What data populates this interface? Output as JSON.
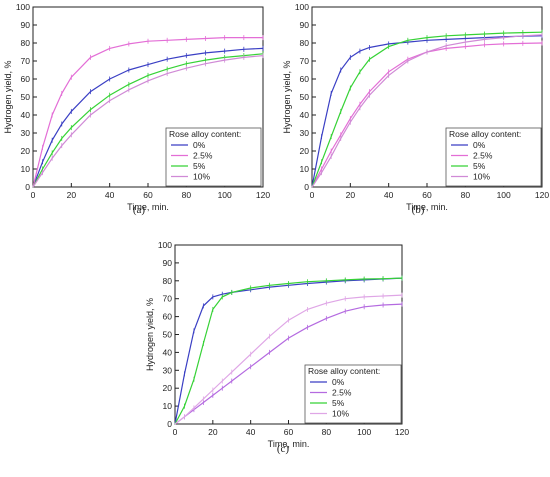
{
  "chart_data": [
    {
      "type": "line",
      "panel_label": "(a)",
      "xlabel": "Time, min.",
      "ylabel": "Hydrogen yield, %",
      "xlim": [
        0,
        120
      ],
      "ylim": [
        0,
        100
      ],
      "xticks": [
        0,
        20,
        40,
        60,
        80,
        100,
        120
      ],
      "yticks": [
        0,
        10,
        20,
        30,
        40,
        50,
        60,
        70,
        80,
        90,
        100
      ],
      "grid": false,
      "legend": {
        "title": "Rose alloy content:",
        "placement": "bottom-right"
      },
      "x": [
        0,
        5,
        10,
        15,
        20,
        30,
        40,
        50,
        60,
        70,
        80,
        90,
        100,
        110,
        120
      ],
      "series": [
        {
          "name": "0%",
          "color": "#3a3fc4",
          "values": [
            0,
            14,
            26,
            35,
            42,
            53,
            60,
            65,
            68,
            71,
            73,
            74.5,
            75.5,
            76.5,
            77
          ]
        },
        {
          "name": "2.5%",
          "color": "#e36ed6",
          "values": [
            0,
            22,
            40,
            52,
            61,
            72,
            77,
            79.5,
            81,
            81.5,
            82,
            82.5,
            83,
            83,
            83
          ]
        },
        {
          "name": "5%",
          "color": "#36d236",
          "values": [
            0,
            10,
            19,
            27,
            33,
            43,
            51,
            57,
            62,
            65.5,
            68.5,
            70.5,
            72,
            73,
            74
          ]
        },
        {
          "name": "10%",
          "color": "#d08ad6",
          "values": [
            0,
            8,
            16,
            23,
            29,
            40,
            48,
            54,
            59,
            63,
            66,
            68.5,
            70.5,
            72,
            73
          ]
        }
      ]
    },
    {
      "type": "line",
      "panel_label": "(b)",
      "xlabel": "Time, min.",
      "ylabel": "Hydrogen yield, %",
      "xlim": [
        0,
        120
      ],
      "ylim": [
        0,
        100
      ],
      "xticks": [
        0,
        20,
        40,
        60,
        80,
        100,
        120
      ],
      "yticks": [
        0,
        10,
        20,
        30,
        40,
        50,
        60,
        70,
        80,
        90,
        100
      ],
      "grid": false,
      "legend": {
        "title": "Rose alloy content:",
        "placement": "bottom-right"
      },
      "x": [
        0,
        5,
        10,
        15,
        20,
        25,
        30,
        40,
        50,
        60,
        70,
        80,
        90,
        100,
        110,
        120
      ],
      "series": [
        {
          "name": "0%",
          "color": "#3a3fc4",
          "values": [
            0,
            28,
            52,
            65,
            72,
            75.5,
            77.5,
            79.5,
            80.5,
            81.5,
            82,
            82.5,
            83,
            83.5,
            83.8,
            84
          ]
        },
        {
          "name": "2.5%",
          "color": "#e36ed6",
          "values": [
            0,
            10,
            20,
            29,
            38,
            46,
            53,
            64,
            71,
            75,
            77,
            78,
            79,
            79.5,
            79.8,
            80
          ]
        },
        {
          "name": "5%",
          "color": "#36d236",
          "values": [
            0,
            14,
            28,
            42,
            55,
            64,
            71,
            78,
            81.5,
            83,
            84,
            84.5,
            85,
            85.5,
            85.8,
            86
          ]
        },
        {
          "name": "10%",
          "color": "#d08ad6",
          "values": [
            0,
            8,
            17,
            27,
            36,
            44,
            51,
            62,
            70,
            75,
            78.5,
            80.5,
            82,
            83,
            84,
            84.5
          ]
        }
      ]
    },
    {
      "type": "line",
      "panel_label": "(c)",
      "xlabel": "Time, min.",
      "ylabel": "Hydrogen yield, %",
      "xlim": [
        0,
        120
      ],
      "ylim": [
        0,
        100
      ],
      "xticks": [
        0,
        20,
        40,
        60,
        80,
        100,
        120
      ],
      "yticks": [
        0,
        10,
        20,
        30,
        40,
        50,
        60,
        70,
        80,
        90,
        100
      ],
      "grid": false,
      "legend": {
        "title": "Rose alloy content:",
        "placement": "bottom-right"
      },
      "x": [
        0,
        5,
        10,
        15,
        20,
        25,
        30,
        40,
        50,
        60,
        70,
        80,
        90,
        100,
        110,
        120
      ],
      "series": [
        {
          "name": "0%",
          "color": "#3a3fc4",
          "values": [
            0,
            28,
            52,
            66,
            71,
            72.5,
            73.5,
            75,
            76.5,
            77.5,
            78.5,
            79.3,
            80,
            80.5,
            81,
            81.5
          ]
        },
        {
          "name": "2.5%",
          "color": "#b46ae0",
          "values": [
            0,
            4,
            8,
            12,
            16,
            20,
            24,
            32,
            40,
            48,
            54,
            59,
            63,
            65.5,
            66.5,
            67
          ]
        },
        {
          "name": "5%",
          "color": "#36d236",
          "values": [
            0,
            10,
            25,
            45,
            64,
            71,
            73.5,
            76,
            77.5,
            78.5,
            79.5,
            80,
            80.5,
            81,
            81.2,
            81.5
          ]
        },
        {
          "name": "10%",
          "color": "#dfa6e6",
          "values": [
            0,
            4,
            9,
            14,
            19,
            24,
            29,
            39,
            49,
            58,
            64,
            67.5,
            70,
            71,
            71.5,
            72
          ]
        }
      ]
    }
  ]
}
